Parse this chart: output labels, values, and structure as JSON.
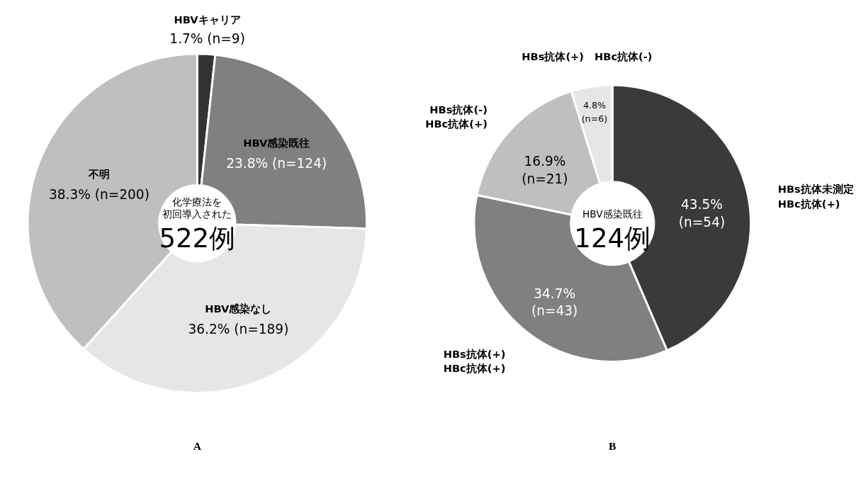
{
  "chart_data": [
    {
      "type": "donut",
      "title": "A",
      "categories": [
        "HBVキャリア",
        "HBV感染既往",
        "HBV感染なし",
        "不明"
      ],
      "values": [
        1.7,
        23.8,
        36.2,
        38.3
      ],
      "value_labels": [
        "1.7% (n=9)",
        "23.8% (n=124)",
        "36.2% (n=189)",
        "38.3% (n=200)"
      ],
      "colors": [
        "#333333",
        "#808080",
        "#e6e6e6",
        "#bfbfbf"
      ],
      "annotations": [
        "化学療法を",
        "初回導入された",
        "522例"
      ]
    },
    {
      "type": "donut",
      "title": "B",
      "categories": [
        "HBs抗体未測定\nHBc抗体(+)",
        "HBs抗体(+)\nHBc抗体(+)",
        "HBs抗体(-)\nHBc抗体(+)",
        "HBs抗体(+)　HBc抗体(-)"
      ],
      "values": [
        43.5,
        34.7,
        16.9,
        4.8
      ],
      "value_labels": [
        "43.5%\n(n=54)",
        "34.7%\n(n=43)",
        "16.9%\n(n=21)",
        "4.8%\n(n=6)"
      ],
      "colors": [
        "#3a3a3a",
        "#808080",
        "#bfbfbf",
        "#e6e6e6"
      ],
      "annotations": [
        "HBV感染既往",
        "124例"
      ]
    }
  ]
}
